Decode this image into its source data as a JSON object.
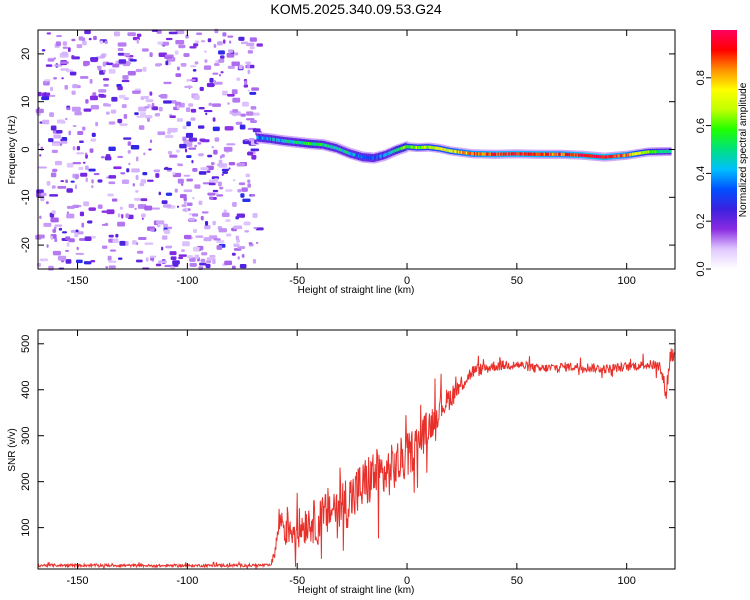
{
  "title": "KOM5.2025.340.09.53.G24",
  "chart_data": [
    {
      "type": "heatmap",
      "title": "KOM5.2025.340.09.53.G24",
      "xlabel": "Height of straight line (km)",
      "ylabel": "Frequency (Hz)",
      "xlim": [
        -168,
        122
      ],
      "ylim": [
        -25,
        25
      ],
      "xticks": [
        -150,
        -100,
        -50,
        0,
        50,
        100
      ],
      "yticks": [
        -20,
        -10,
        0,
        10,
        20
      ],
      "colorbar": {
        "label": "Normalized spectral amplitude",
        "range": [
          0,
          1
        ],
        "ticks": [
          "0.0",
          "0.2",
          "0.4",
          "0.6",
          "0.8"
        ],
        "colors": [
          "#ffffff",
          "#e0c8ff",
          "#8a2be2",
          "#3c20e0",
          "#0050ff",
          "#00c0ff",
          "#00e080",
          "#20ff00",
          "#c0ff00",
          "#ffff00",
          "#ff9000",
          "#ff0000",
          "#ff0060"
        ]
      },
      "noise_region_km": [
        -168,
        -67
      ],
      "signal_track": {
        "x": [
          -68,
          -62,
          -56,
          -50,
          -44,
          -38,
          -32,
          -26,
          -20,
          -15,
          -10,
          -5,
          0,
          5,
          10,
          15,
          20,
          25,
          30,
          40,
          50,
          60,
          70,
          80,
          90,
          100,
          110,
          120
        ],
        "frequency": [
          2.5,
          2.2,
          1.8,
          1.5,
          1.2,
          1.0,
          0.3,
          -0.8,
          -1.6,
          -1.8,
          -1.2,
          -0.2,
          0.6,
          0.4,
          0.5,
          0.2,
          -0.3,
          -0.6,
          -0.9,
          -1.0,
          -0.9,
          -1.0,
          -1.0,
          -1.2,
          -1.6,
          -1.2,
          -0.5,
          -0.4
        ],
        "amplitude": [
          0.35,
          0.4,
          0.45,
          0.5,
          0.55,
          0.5,
          0.5,
          0.45,
          0.35,
          0.3,
          0.4,
          0.55,
          0.6,
          0.65,
          0.65,
          0.7,
          0.75,
          0.8,
          0.85,
          0.9,
          0.92,
          0.9,
          0.85,
          0.95,
          0.95,
          0.85,
          0.6,
          0.45
        ]
      }
    },
    {
      "type": "line",
      "xlabel": "Height of straight line (km)",
      "ylabel": "SNR (v/v)",
      "xlim": [
        -168,
        122
      ],
      "ylim": [
        10,
        530
      ],
      "xticks": [
        -150,
        -100,
        -50,
        0,
        50,
        100
      ],
      "yticks": [
        100,
        200,
        300,
        400,
        500
      ],
      "color": "#e8302a",
      "series": [
        {
          "name": "SNR",
          "x": [
            -168,
            -140,
            -110,
            -80,
            -62,
            -60,
            -58,
            -55,
            -50,
            -45,
            -40,
            -35,
            -30,
            -25,
            -20,
            -15,
            -10,
            -5,
            0,
            5,
            10,
            15,
            20,
            25,
            30,
            40,
            50,
            60,
            70,
            80,
            90,
            100,
            110,
            115,
            118,
            120,
            122
          ],
          "y": [
            18,
            18,
            17,
            18,
            18,
            50,
            120,
            105,
            95,
            115,
            110,
            140,
            150,
            165,
            190,
            215,
            215,
            235,
            255,
            285,
            320,
            360,
            385,
            415,
            440,
            452,
            455,
            445,
            450,
            450,
            445,
            450,
            455,
            452,
            395,
            480,
            470
          ],
          "spread": [
            3,
            3,
            3,
            3,
            3,
            15,
            40,
            45,
            45,
            45,
            50,
            55,
            60,
            60,
            60,
            60,
            55,
            55,
            50,
            45,
            40,
            30,
            25,
            20,
            15,
            12,
            10,
            10,
            10,
            10,
            10,
            10,
            10,
            12,
            20,
            25,
            15
          ]
        }
      ]
    }
  ]
}
